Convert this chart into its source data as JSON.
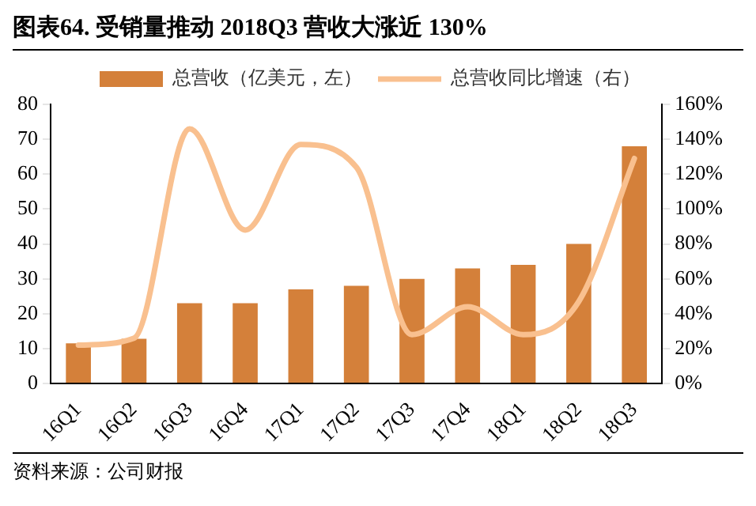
{
  "chart_data": {
    "type": "bar",
    "title": "图表64.  受销量推动 2018Q3 营收大涨近 130%",
    "annotations": [
      "资料来源：公司财报"
    ],
    "categories": [
      "16Q1",
      "16Q2",
      "16Q3",
      "16Q4",
      "17Q1",
      "17Q2",
      "17Q3",
      "17Q4",
      "18Q1",
      "18Q2",
      "18Q3"
    ],
    "series": [
      {
        "name": "总营收（亿美元，左）",
        "color": "#d4803a",
        "values": [
          11.5,
          12.8,
          23,
          23,
          27,
          28,
          30,
          33,
          34,
          40,
          68
        ]
      },
      {
        "name": "总营收同比增速（右）",
        "type": "line",
        "axis": "y2",
        "color": "#f9c08f",
        "marker": "none",
        "values": [
          22,
          26,
          146,
          88,
          137,
          124,
          28,
          44,
          28,
          47,
          129
        ]
      }
    ],
    "ylim": [
      0,
      80
    ],
    "yticks": [
      0,
      10,
      20,
      30,
      40,
      50,
      60,
      70,
      80
    ],
    "y2lim": [
      0,
      160
    ],
    "y2ticks": [
      {
        "value": 0,
        "label": "0%"
      },
      {
        "value": 20,
        "label": "20%"
      },
      {
        "value": 40,
        "label": "40%"
      },
      {
        "value": 60,
        "label": "60%"
      },
      {
        "value": 80,
        "label": "80%"
      },
      {
        "value": 100,
        "label": "100%"
      },
      {
        "value": 120,
        "label": "120%"
      },
      {
        "value": 140,
        "label": "140%"
      },
      {
        "value": 160,
        "label": "160%"
      }
    ],
    "grid": false,
    "legend": "top"
  }
}
